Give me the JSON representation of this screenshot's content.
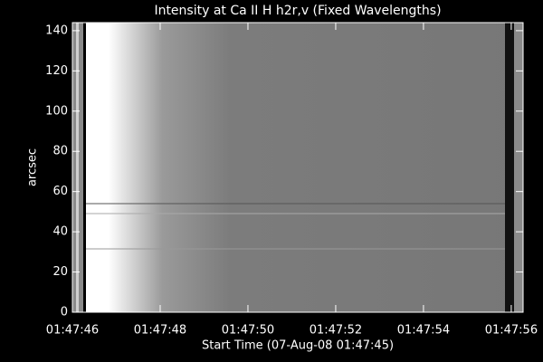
{
  "chart_data": {
    "type": "image",
    "title": "Intensity at Ca II H h2r,v (Fixed Wavelengths)",
    "x_label": "Start Time (07-Aug-08 01:47:45)",
    "y_label": "arcsec",
    "xlim": [
      46,
      56.27
    ],
    "ylim": [
      0,
      144
    ],
    "xticks": [
      {
        "value": 46,
        "label": "01:47:46"
      },
      {
        "value": 48,
        "label": "01:47:48"
      },
      {
        "value": 50,
        "label": "01:47:50"
      },
      {
        "value": 52,
        "label": "01:47:52"
      },
      {
        "value": 54,
        "label": "01:47:54"
      },
      {
        "value": 56,
        "label": "01:47:56"
      }
    ],
    "yticks": [
      0,
      20,
      40,
      60,
      80,
      100,
      120,
      140
    ]
  }
}
